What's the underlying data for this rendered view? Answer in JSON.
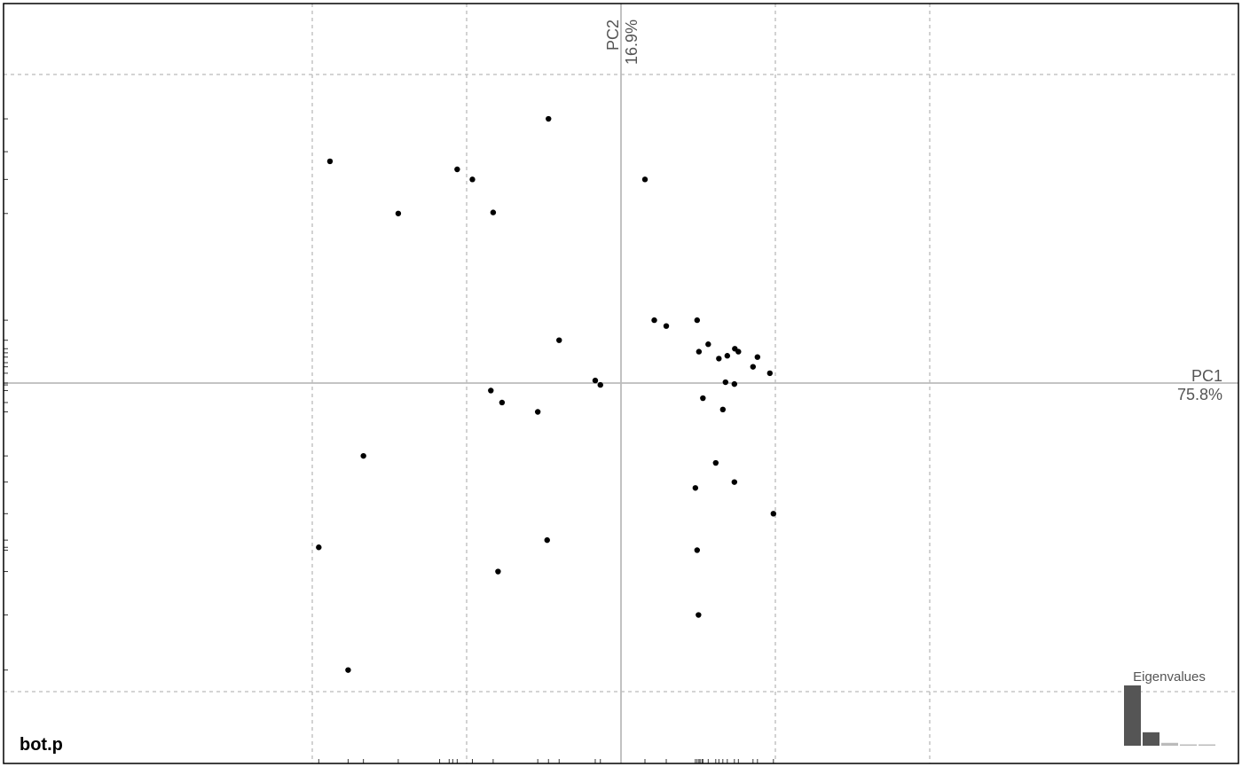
{
  "chart_data": {
    "type": "scatter",
    "title": "bot.p",
    "xlabel": "PC1",
    "xlabel_pct": "75.8%",
    "ylabel": "PC2",
    "ylabel_pct": "16.9%",
    "xlim": [
      -1.0,
      1.0
    ],
    "ylim": [
      -1.23,
      1.23
    ],
    "x_grid": [
      -1.0,
      -0.5,
      0.0,
      0.5,
      1.0
    ],
    "y_grid": [
      -1.0,
      0.0,
      1.0
    ],
    "points": [
      {
        "x": -0.5306,
        "y": 0.6925
      },
      {
        "x": -0.9427,
        "y": 0.7186
      },
      {
        "x": -0.4814,
        "y": 0.6599
      },
      {
        "x": -0.4141,
        "y": 0.5529
      },
      {
        "x": -0.2349,
        "y": 0.8562
      },
      {
        "x": -0.7215,
        "y": 0.5495
      },
      {
        "x": -0.2004,
        "y": 0.1388
      },
      {
        "x": -0.0834,
        "y": 0.0084
      },
      {
        "x": -0.0668,
        "y": -0.006
      },
      {
        "x": -0.2696,
        "y": -0.0934
      },
      {
        "x": -0.4216,
        "y": -0.0243
      },
      {
        "x": -0.3854,
        "y": -0.0631
      },
      {
        "x": -0.8343,
        "y": -0.2361
      },
      {
        "x": -0.979,
        "y": -0.5323
      },
      {
        "x": -0.3983,
        "y": -0.6108
      },
      {
        "x": -0.2392,
        "y": -0.509
      },
      {
        "x": -0.8839,
        "y": -0.93
      },
      {
        "x": 0.0776,
        "y": 0.6599
      },
      {
        "x": 0.1078,
        "y": 0.2037
      },
      {
        "x": 0.1466,
        "y": 0.1848
      },
      {
        "x": 0.2466,
        "y": 0.2037
      },
      {
        "x": 0.2524,
        "y": 0.1017
      },
      {
        "x": 0.2825,
        "y": 0.1258
      },
      {
        "x": 0.317,
        "y": 0.0793
      },
      {
        "x": 0.3443,
        "y": 0.0885
      },
      {
        "x": 0.3687,
        "y": 0.1113
      },
      {
        "x": 0.3802,
        "y": 0.1017
      },
      {
        "x": 0.4276,
        "y": 0.0527
      },
      {
        "x": 0.442,
        "y": 0.0842
      },
      {
        "x": 0.4822,
        "y": 0.0319
      },
      {
        "x": 0.3385,
        "y": 0.0028
      },
      {
        "x": 0.3673,
        "y": -0.0032
      },
      {
        "x": 0.2653,
        "y": -0.049
      },
      {
        "x": 0.3299,
        "y": -0.0857
      },
      {
        "x": 0.3069,
        "y": -0.2588
      },
      {
        "x": 0.3673,
        "y": -0.3208
      },
      {
        "x": 0.2409,
        "y": -0.3399
      },
      {
        "x": 0.4937,
        "y": -0.4233
      },
      {
        "x": 0.2466,
        "y": -0.5416
      },
      {
        "x": 0.251,
        "y": -0.7515
      }
    ],
    "left_ticks_y": [
      0.8562,
      0.7498,
      0.6599,
      0.5495,
      0.2037,
      0.1388,
      0.1113,
      0.098,
      0.0842,
      0.0661,
      0.0527,
      0.0319,
      0.0,
      -0.006,
      -0.0243,
      -0.0631,
      -0.0934,
      -0.2361,
      -0.3208,
      -0.4233,
      -0.509,
      -0.5323,
      -0.5416,
      -0.6108,
      -0.7515,
      -0.93
    ],
    "bottom_ticks_x": [
      -0.979,
      -0.8839,
      -0.8343,
      -0.7215,
      -0.5875,
      -0.5566,
      -0.545,
      -0.5306,
      -0.4814,
      -0.4141,
      -0.2696,
      -0.2349,
      -0.2004,
      -0.0834,
      -0.0668,
      0.0776,
      0.1466,
      0.2409,
      0.2466,
      0.2524,
      0.2562,
      0.2624,
      0.2653,
      0.2825,
      0.3069,
      0.317,
      0.3299,
      0.3443,
      0.3673,
      0.3802,
      0.4276,
      0.442,
      0.4937
    ],
    "eigenvalues": {
      "label": "Eigenvalues",
      "values": [
        75.8,
        16.9,
        3.6,
        1.3,
        1.0
      ],
      "colors": [
        "#555555",
        "#555555",
        "#bbbbbb",
        "#bbbbbb",
        "#bbbbbb"
      ]
    },
    "colors": {
      "axis": "#bbbbbb",
      "grid": "#bbbbbb",
      "point": "#000000",
      "text": "#555555",
      "frame": "#000000"
    }
  }
}
